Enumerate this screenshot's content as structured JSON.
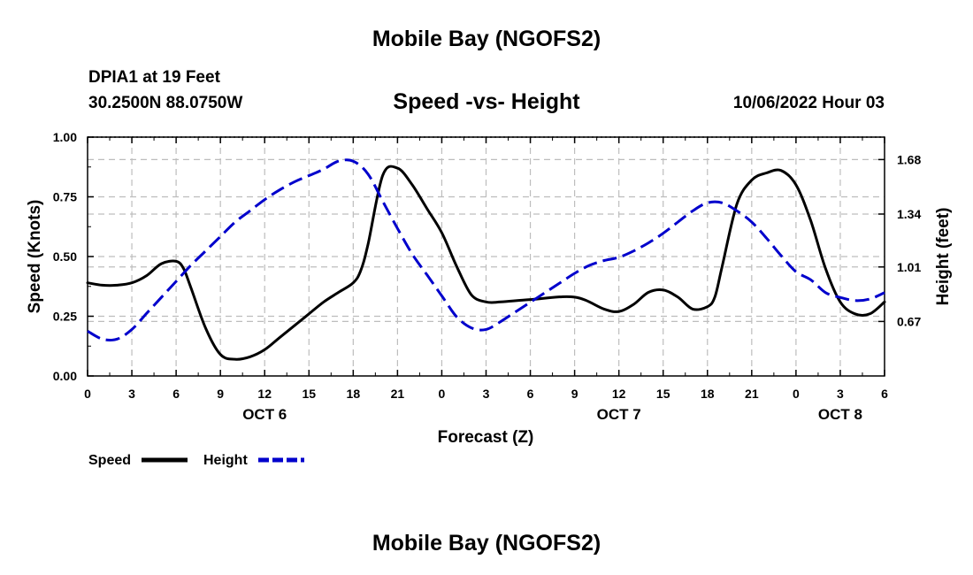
{
  "header": {
    "title": "Mobile Bay (NGOFS2)",
    "station": "DPIA1 at 19 Feet",
    "coords": "30.2500N  88.0750W",
    "subtitle": "Speed -vs- Height",
    "datetime": "10/06/2022 Hour 03",
    "bottom_title": "Mobile Bay (NGOFS2)"
  },
  "chart_data": {
    "type": "line",
    "xlabel": "Forecast (Z)",
    "ylabel": "Speed (Knots)",
    "y2label": "Height (feet)",
    "x_range_hours": [
      0,
      54
    ],
    "x_ticks": [
      {
        "h": 0,
        "label": "0"
      },
      {
        "h": 3,
        "label": "3"
      },
      {
        "h": 6,
        "label": "6"
      },
      {
        "h": 9,
        "label": "9"
      },
      {
        "h": 12,
        "label": "12"
      },
      {
        "h": 15,
        "label": "15"
      },
      {
        "h": 18,
        "label": "18"
      },
      {
        "h": 21,
        "label": "21"
      },
      {
        "h": 24,
        "label": "0"
      },
      {
        "h": 27,
        "label": "3"
      },
      {
        "h": 30,
        "label": "6"
      },
      {
        "h": 33,
        "label": "9"
      },
      {
        "h": 36,
        "label": "12"
      },
      {
        "h": 39,
        "label": "15"
      },
      {
        "h": 42,
        "label": "18"
      },
      {
        "h": 45,
        "label": "21"
      },
      {
        "h": 48,
        "label": "0"
      },
      {
        "h": 51,
        "label": "3"
      },
      {
        "h": 54,
        "label": "6"
      }
    ],
    "day_labels": [
      {
        "h": 12,
        "label": "OCT 6"
      },
      {
        "h": 36,
        "label": "OCT 7"
      },
      {
        "h": 51,
        "label": "OCT 8"
      }
    ],
    "ylim": [
      0,
      1
    ],
    "y_ticks": [
      {
        "v": 0,
        "label": "0.00"
      },
      {
        "v": 0.25,
        "label": "0.25"
      },
      {
        "v": 0.5,
        "label": "0.50"
      },
      {
        "v": 0.75,
        "label": "0.75"
      },
      {
        "v": 1,
        "label": "1.00"
      }
    ],
    "y2lim": [
      0.33,
      1.82
    ],
    "y2_ticks": [
      {
        "v": 0.67,
        "label": "0.67"
      },
      {
        "v": 1.01,
        "label": "1.01"
      },
      {
        "v": 1.34,
        "label": "1.34"
      },
      {
        "v": 1.68,
        "label": "1.68"
      }
    ],
    "series": [
      {
        "name": "Speed",
        "axis": "left",
        "color": "#000000",
        "dash": "solid",
        "x": [
          0,
          1,
          2,
          3,
          4,
          5,
          6,
          6.5,
          7,
          8,
          9,
          10,
          11,
          12,
          13,
          14,
          15,
          16,
          17,
          18,
          18.5,
          19,
          20,
          21,
          22,
          23,
          24,
          25,
          26,
          27,
          28,
          30,
          33,
          35,
          36,
          37,
          38,
          39,
          40,
          41,
          42,
          42.5,
          43,
          44,
          45,
          46,
          47,
          48,
          49,
          50,
          51,
          52,
          53,
          54
        ],
        "y": [
          0.39,
          0.38,
          0.38,
          0.39,
          0.42,
          0.47,
          0.48,
          0.45,
          0.37,
          0.2,
          0.09,
          0.07,
          0.08,
          0.11,
          0.16,
          0.21,
          0.26,
          0.31,
          0.35,
          0.39,
          0.44,
          0.55,
          0.84,
          0.87,
          0.8,
          0.7,
          0.6,
          0.46,
          0.34,
          0.31,
          0.31,
          0.32,
          0.33,
          0.28,
          0.27,
          0.3,
          0.35,
          0.36,
          0.33,
          0.28,
          0.29,
          0.33,
          0.46,
          0.72,
          0.82,
          0.85,
          0.86,
          0.8,
          0.65,
          0.45,
          0.31,
          0.26,
          0.26,
          0.31
        ]
      },
      {
        "name": "Height",
        "axis": "right",
        "color": "#0000cc",
        "dash": "dashed",
        "x": [
          0,
          1,
          2,
          3,
          4,
          5,
          6,
          7,
          8,
          9,
          10,
          11,
          12,
          13,
          14,
          15,
          16,
          17,
          18,
          19,
          20,
          21,
          22,
          23,
          24,
          25,
          26,
          27,
          28,
          29,
          30,
          31,
          32,
          33,
          34,
          35,
          36,
          37,
          38,
          39,
          40,
          41,
          42,
          43,
          44,
          45,
          46,
          47,
          48,
          49,
          50,
          51,
          52,
          53,
          54
        ],
        "y": [
          0.61,
          0.56,
          0.56,
          0.62,
          0.72,
          0.82,
          0.92,
          1.02,
          1.11,
          1.2,
          1.29,
          1.36,
          1.43,
          1.49,
          1.54,
          1.58,
          1.62,
          1.67,
          1.67,
          1.59,
          1.42,
          1.25,
          1.09,
          0.96,
          0.83,
          0.7,
          0.63,
          0.62,
          0.67,
          0.73,
          0.79,
          0.85,
          0.91,
          0.97,
          1.02,
          1.05,
          1.07,
          1.11,
          1.16,
          1.22,
          1.29,
          1.36,
          1.41,
          1.41,
          1.36,
          1.29,
          1.19,
          1.08,
          0.98,
          0.93,
          0.85,
          0.82,
          0.8,
          0.81,
          0.85
        ]
      }
    ],
    "legend": [
      {
        "label": "Speed",
        "color": "#000000",
        "dash": "solid"
      },
      {
        "label": "Height",
        "color": "#0000cc",
        "dash": "dashed"
      }
    ],
    "legend_position": "bottom-left",
    "grid": true
  }
}
